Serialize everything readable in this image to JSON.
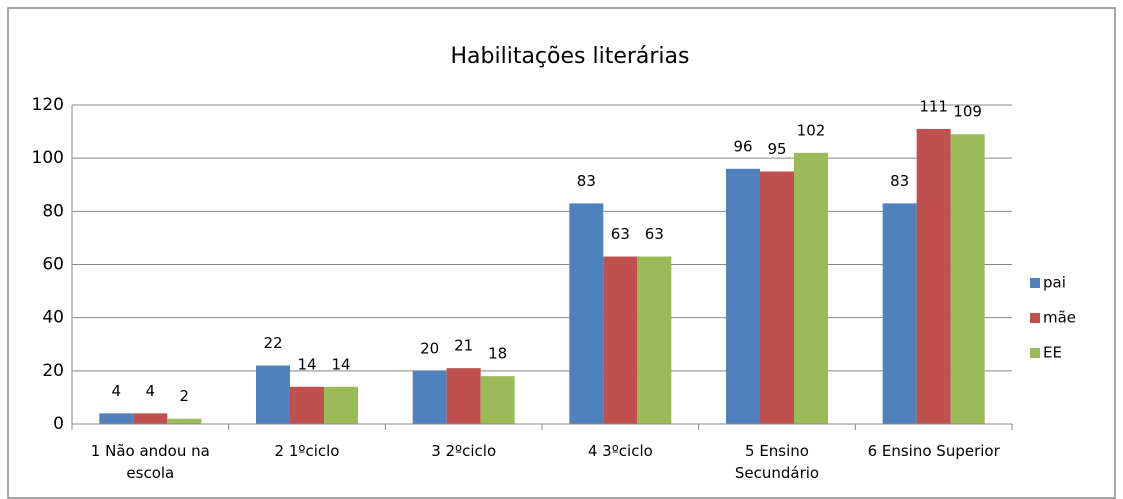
{
  "chart_data": {
    "type": "bar",
    "title": "Habilitações literárias",
    "categories": [
      "1 Não andou na escola",
      "2 1ºciclo",
      "3 2ºciclo",
      "4 3ºciclo",
      "5 Ensino Secundário",
      "6 Ensino Superior"
    ],
    "series": [
      {
        "name": "pai",
        "color": "#4f81bd",
        "values": [
          4,
          22,
          20,
          83,
          96,
          83
        ]
      },
      {
        "name": "mãe",
        "color": "#c0504d",
        "values": [
          4,
          14,
          21,
          63,
          95,
          111
        ]
      },
      {
        "name": "EE",
        "color": "#9bbb59",
        "values": [
          2,
          14,
          18,
          63,
          102,
          109
        ]
      }
    ],
    "ylim": [
      0,
      120
    ],
    "yticks": [
      0,
      20,
      40,
      60,
      80,
      100,
      120
    ],
    "grid": true,
    "legend": "right"
  }
}
